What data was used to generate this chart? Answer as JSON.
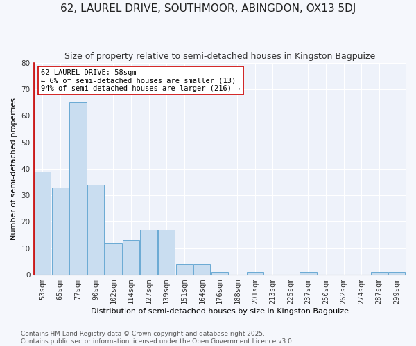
{
  "title": "62, LAUREL DRIVE, SOUTHMOOR, ABINGDON, OX13 5DJ",
  "subtitle": "Size of property relative to semi-detached houses in Kingston Bagpuize",
  "xlabel": "Distribution of semi-detached houses by size in Kingston Bagpuize",
  "ylabel": "Number of semi-detached properties",
  "categories": [
    "53sqm",
    "65sqm",
    "77sqm",
    "90sqm",
    "102sqm",
    "114sqm",
    "127sqm",
    "139sqm",
    "151sqm",
    "164sqm",
    "176sqm",
    "188sqm",
    "201sqm",
    "213sqm",
    "225sqm",
    "237sqm",
    "250sqm",
    "262sqm",
    "274sqm",
    "287sqm",
    "299sqm"
  ],
  "values": [
    39,
    33,
    65,
    34,
    12,
    13,
    17,
    17,
    4,
    4,
    1,
    0,
    1,
    0,
    0,
    1,
    0,
    0,
    0,
    1,
    1
  ],
  "bar_color": "#c9ddf0",
  "bar_edge_color": "#6aaad4",
  "annotation_text": "62 LAUREL DRIVE: 58sqm\n← 6% of semi-detached houses are smaller (13)\n94% of semi-detached houses are larger (216) →",
  "annotation_box_color": "#ffffff",
  "annotation_box_edge_color": "#cc0000",
  "red_line_color": "#cc0000",
  "ylim": [
    0,
    80
  ],
  "yticks": [
    0,
    10,
    20,
    30,
    40,
    50,
    60,
    70,
    80
  ],
  "background_color": "#f5f7fc",
  "plot_bg_color": "#eef2fa",
  "footer_text": "Contains HM Land Registry data © Crown copyright and database right 2025.\nContains public sector information licensed under the Open Government Licence v3.0.",
  "title_fontsize": 11,
  "subtitle_fontsize": 9,
  "label_fontsize": 8,
  "tick_fontsize": 7.5,
  "annotation_fontsize": 7.5,
  "footer_fontsize": 6.5
}
